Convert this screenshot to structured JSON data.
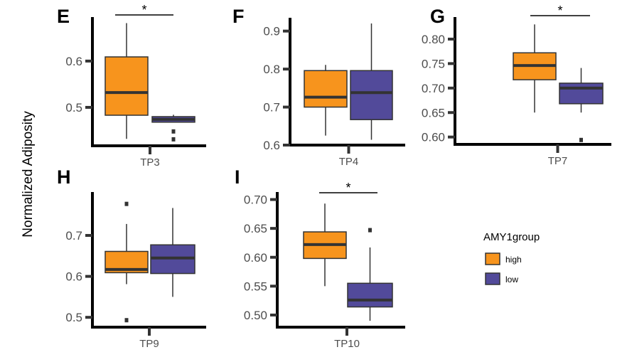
{
  "chart_data": [
    {
      "type": "box",
      "panel": "E",
      "category": "TP3",
      "ylim": [
        0.417,
        0.695
      ],
      "yticks": [
        0.5,
        0.6
      ],
      "tick_labels": [
        "0.5",
        "0.6"
      ],
      "significance": "*",
      "series": [
        {
          "name": "high",
          "whisker_low": 0.432,
          "q1": 0.483,
          "median": 0.532,
          "q3": 0.609,
          "whisker_high": 0.682,
          "outliers": []
        },
        {
          "name": "low",
          "whisker_low": 0.468,
          "q1": 0.468,
          "median": 0.474,
          "q3": 0.48,
          "whisker_high": 0.484,
          "outliers": [
            0.448,
            0.431
          ]
        }
      ]
    },
    {
      "type": "box",
      "panel": "F",
      "category": "TP4",
      "ylim": [
        0.6,
        0.935
      ],
      "yticks": [
        0.6,
        0.7,
        0.8,
        0.9
      ],
      "tick_labels": [
        "0.6",
        "0.7",
        "0.8",
        "0.9"
      ],
      "significance": "",
      "series": [
        {
          "name": "high",
          "whisker_low": 0.625,
          "q1": 0.7,
          "median": 0.726,
          "q3": 0.796,
          "whisker_high": 0.811,
          "outliers": []
        },
        {
          "name": "low",
          "whisker_low": 0.614,
          "q1": 0.667,
          "median": 0.738,
          "q3": 0.796,
          "whisker_high": 0.92,
          "outliers": []
        }
      ]
    },
    {
      "type": "box",
      "panel": "G",
      "category": "TP7",
      "ylim": [
        0.585,
        0.845
      ],
      "yticks": [
        0.6,
        0.65,
        0.7,
        0.75,
        0.8
      ],
      "tick_labels": [
        "0.60",
        "0.65",
        "0.70",
        "0.75",
        "0.80"
      ],
      "significance": "*",
      "series": [
        {
          "name": "high",
          "whisker_low": 0.65,
          "q1": 0.717,
          "median": 0.746,
          "q3": 0.772,
          "whisker_high": 0.83,
          "outliers": []
        },
        {
          "name": "low",
          "whisker_low": 0.65,
          "q1": 0.668,
          "median": 0.7,
          "q3": 0.71,
          "whisker_high": 0.741,
          "outliers": [
            0.594
          ]
        }
      ]
    },
    {
      "type": "box",
      "panel": "H",
      "category": "TP9",
      "ylim": [
        0.476,
        0.806
      ],
      "yticks": [
        0.5,
        0.6,
        0.7
      ],
      "tick_labels": [
        "0.5",
        "0.6",
        "0.7"
      ],
      "significance": "",
      "series": [
        {
          "name": "high",
          "whisker_low": 0.581,
          "q1": 0.609,
          "median": 0.617,
          "q3": 0.661,
          "whisker_high": 0.728,
          "outliers": [
            0.777,
            0.493
          ]
        },
        {
          "name": "low",
          "whisker_low": 0.55,
          "q1": 0.607,
          "median": 0.645,
          "q3": 0.677,
          "whisker_high": 0.767,
          "outliers": []
        }
      ]
    },
    {
      "type": "box",
      "panel": "I",
      "category": "TP10",
      "ylim": [
        0.479,
        0.713
      ],
      "yticks": [
        0.5,
        0.55,
        0.6,
        0.65,
        0.7
      ],
      "tick_labels": [
        "0.50",
        "0.55",
        "0.60",
        "0.65",
        "0.70"
      ],
      "significance": "*",
      "series": [
        {
          "name": "high",
          "whisker_low": 0.55,
          "q1": 0.598,
          "median": 0.622,
          "q3": 0.644,
          "whisker_high": 0.693,
          "outliers": []
        },
        {
          "name": "low",
          "whisker_low": 0.49,
          "q1": 0.514,
          "median": 0.526,
          "q3": 0.555,
          "whisker_high": 0.617,
          "outliers": [
            0.647
          ]
        }
      ]
    }
  ],
  "ylabel": "Normalized Adiposity",
  "legend": {
    "title": "AMY1group",
    "placement": "right",
    "items": [
      {
        "label": "high",
        "color": "#f7941d"
      },
      {
        "label": "low",
        "color": "#524a9a"
      }
    ]
  }
}
